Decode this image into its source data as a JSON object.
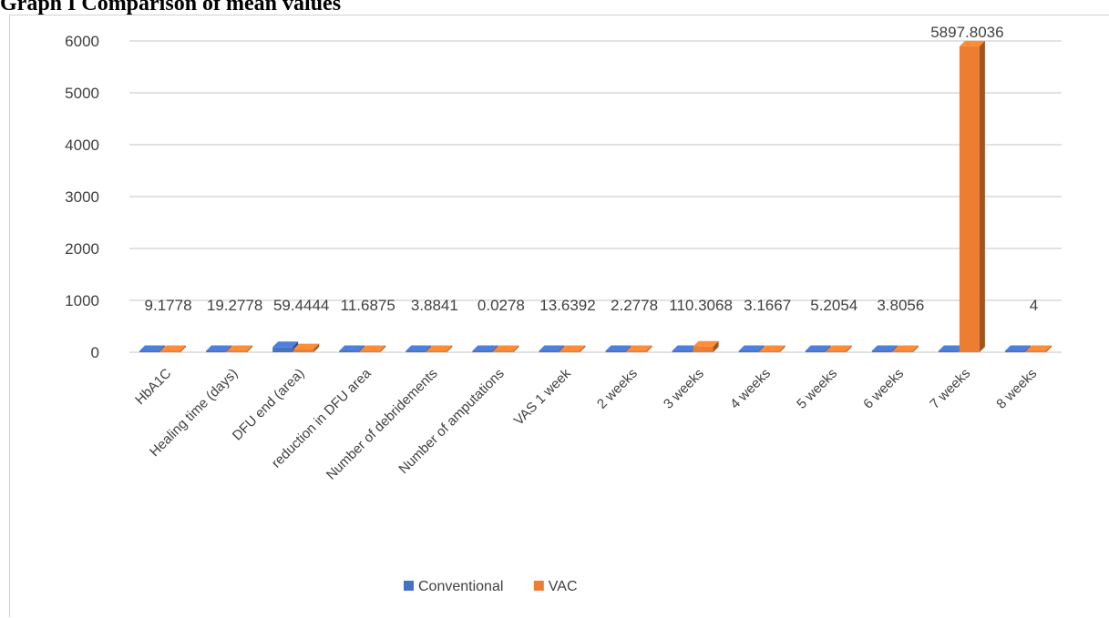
{
  "title": "Graph I Comparison of mean values",
  "chart_data": {
    "type": "bar",
    "title": "",
    "xlabel": "",
    "ylabel": "",
    "ylim": [
      0,
      6000
    ],
    "yticks": [
      0,
      1000,
      2000,
      3000,
      4000,
      5000,
      6000
    ],
    "grid": true,
    "legend_position": "bottom",
    "categories": [
      "HbA1C",
      "Healing time (days)",
      "DFU end (area)",
      "reduction in DFU area",
      "Number of debridements",
      "Number of amputations",
      "VAS 1 week",
      "2 weeks",
      "3 weeks",
      "4 weeks",
      "5 weeks",
      "6 weeks",
      "7 weeks",
      "8 weeks"
    ],
    "series": [
      {
        "name": "Conventional",
        "color": "#4472c4",
        "values": [
          9.0,
          17.0,
          100.0,
          12.0,
          3.5,
          0.03,
          3.5,
          2.0,
          2.0,
          3.0,
          5.0,
          3.5,
          3.0,
          4.0
        ]
      },
      {
        "name": "VAC",
        "color": "#ed7d31",
        "values": [
          9.1778,
          19.2778,
          59.4444,
          11.6875,
          3.8841,
          0.0278,
          13.6392,
          2.2778,
          110.3068,
          3.1667,
          5.2054,
          3.8056,
          5897.8036,
          4
        ]
      }
    ],
    "data_labels": [
      "9.1778",
      "19.2778",
      "59.4444",
      "11.6875",
      "3.8841",
      "0.0278",
      "13.6392",
      "2.2778",
      "110.3068",
      "3.1667",
      "5.2054",
      "3.8056",
      "5897.8036",
      "4"
    ]
  }
}
